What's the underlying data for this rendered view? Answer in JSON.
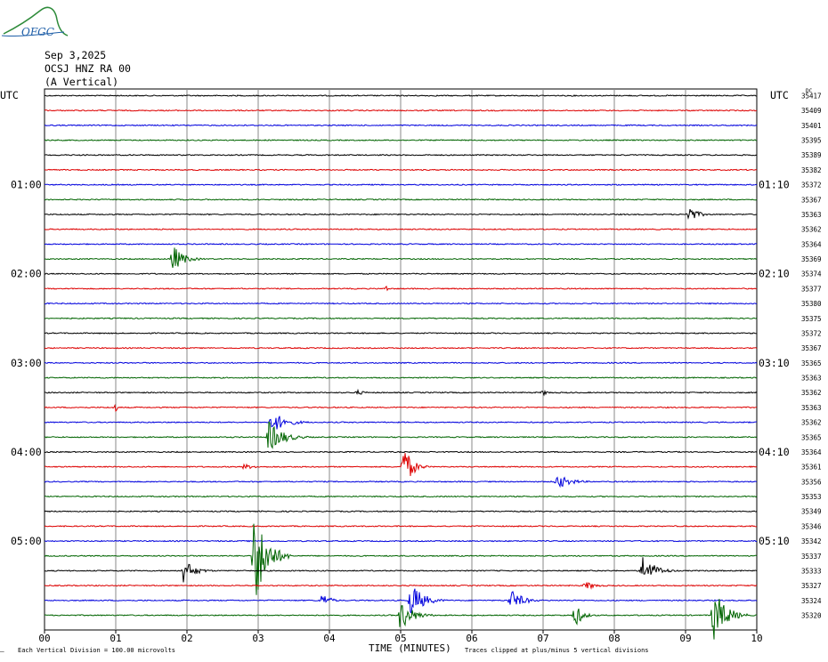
{
  "logo": {
    "text": "OFGC",
    "color": "#1f5fa8",
    "arc_color": "#2e8b3a"
  },
  "header": {
    "date": "Sep 3,2025",
    "station": "OCSJ HNZ RA 00",
    "component": "(A Vertical)"
  },
  "chart_data": {
    "type": "line",
    "xlabel": "TIME (MINUTES)",
    "x_tick_labels": [
      "00",
      "01",
      "02",
      "03",
      "04",
      "05",
      "06",
      "07",
      "08",
      "09",
      "10"
    ],
    "xlim": [
      0,
      10
    ],
    "left_axis_label": "UTC",
    "right_axis_label": "UTC",
    "right_axis_unit": "DC",
    "left_time_labels": [
      {
        "row": 6,
        "label": "01:00"
      },
      {
        "row": 12,
        "label": "02:00"
      },
      {
        "row": 18,
        "label": "03:00"
      },
      {
        "row": 24,
        "label": "04:00"
      },
      {
        "row": 30,
        "label": "05:00"
      }
    ],
    "right_time_labels": [
      {
        "row": 6,
        "label": "01:10"
      },
      {
        "row": 12,
        "label": "02:10"
      },
      {
        "row": 18,
        "label": "03:10"
      },
      {
        "row": 24,
        "label": "04:10"
      },
      {
        "row": 30,
        "label": "05:10"
      }
    ],
    "trace_colors": [
      "#000000",
      "#dd0000",
      "#0000dd",
      "#006400"
    ],
    "dc_offsets": [
      35417,
      35409,
      35401,
      35395,
      35389,
      35382,
      35372,
      35367,
      35363,
      35362,
      35364,
      35369,
      35374,
      35377,
      35380,
      35375,
      35372,
      35367,
      35365,
      35363,
      35362,
      35363,
      35362,
      35365,
      35364,
      35361,
      35356,
      35353,
      35349,
      35346,
      35342,
      35337,
      35333,
      35327,
      35324,
      35320
    ],
    "events": [
      {
        "row": 8,
        "minute": 9.05,
        "amp": 10,
        "dur": 0.35
      },
      {
        "row": 11,
        "minute": 1.8,
        "amp": 16,
        "dur": 0.45
      },
      {
        "row": 13,
        "minute": 4.8,
        "amp": 4,
        "dur": 0.08
      },
      {
        "row": 20,
        "minute": 4.4,
        "amp": 3,
        "dur": 0.3
      },
      {
        "row": 20,
        "minute": 7.0,
        "amp": 3,
        "dur": 0.3
      },
      {
        "row": 21,
        "minute": 1.0,
        "amp": 6,
        "dur": 0.06
      },
      {
        "row": 22,
        "minute": 3.2,
        "amp": 12,
        "dur": 0.6
      },
      {
        "row": 23,
        "minute": 3.15,
        "amp": 18,
        "dur": 0.6
      },
      {
        "row": 25,
        "minute": 5.05,
        "amp": 24,
        "dur": 0.35
      },
      {
        "row": 25,
        "minute": 2.8,
        "amp": 3,
        "dur": 0.6
      },
      {
        "row": 26,
        "minute": 7.2,
        "amp": 8,
        "dur": 0.6
      },
      {
        "row": 31,
        "minute": 2.95,
        "amp": 60,
        "dur": 0.5
      },
      {
        "row": 32,
        "minute": 1.95,
        "amp": 14,
        "dur": 0.45
      },
      {
        "row": 32,
        "minute": 8.4,
        "amp": 18,
        "dur": 0.5
      },
      {
        "row": 33,
        "minute": 7.6,
        "amp": 5,
        "dur": 0.45
      },
      {
        "row": 34,
        "minute": 3.9,
        "amp": 8,
        "dur": 0.35
      },
      {
        "row": 34,
        "minute": 5.15,
        "amp": 20,
        "dur": 0.5
      },
      {
        "row": 34,
        "minute": 6.55,
        "amp": 12,
        "dur": 0.5
      },
      {
        "row": 35,
        "minute": 5.0,
        "amp": 18,
        "dur": 0.5
      },
      {
        "row": 35,
        "minute": 7.45,
        "amp": 14,
        "dur": 0.3
      },
      {
        "row": 35,
        "minute": 9.4,
        "amp": 30,
        "dur": 0.5
      }
    ]
  },
  "footer": {
    "scale_note": "Each Vertical Division =  100.00 microvolts",
    "clip_note": "Traces clipped at plus/minus 5 vertical divisions",
    "corner_mark": "͞"
  }
}
